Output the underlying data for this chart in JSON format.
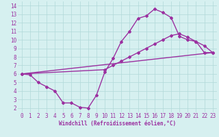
{
  "line1_x": [
    0,
    1,
    2,
    3,
    4,
    5,
    6,
    7,
    8,
    9,
    10,
    11,
    12,
    13,
    14,
    15,
    16,
    17,
    18,
    19,
    20,
    21,
    22,
    23
  ],
  "line1_y": [
    6.0,
    5.9,
    5.0,
    4.5,
    4.0,
    2.6,
    2.6,
    2.1,
    2.0,
    3.5,
    6.2,
    7.8,
    9.8,
    11.0,
    12.5,
    12.8,
    13.6,
    13.2,
    12.6,
    10.4,
    10.0,
    9.8,
    8.5,
    8.5
  ],
  "line2_x": [
    0,
    23
  ],
  "line2_y": [
    6.0,
    8.5
  ],
  "line3_x": [
    0,
    10,
    11,
    12,
    13,
    14,
    15,
    16,
    17,
    18,
    19,
    20,
    21,
    22,
    23
  ],
  "line3_y": [
    6.0,
    6.5,
    7.0,
    7.5,
    8.0,
    8.5,
    9.0,
    9.5,
    10.0,
    10.5,
    10.7,
    10.3,
    9.8,
    9.3,
    8.5
  ],
  "color": "#9b30a0",
  "bg_color": "#d6f0f0",
  "grid_color": "#b0d8d8",
  "xlabel": "Windchill (Refroidissement éolien,°C)",
  "xlim": [
    -0.5,
    23.5
  ],
  "ylim": [
    1.5,
    14.5
  ],
  "xticks": [
    0,
    1,
    2,
    3,
    4,
    5,
    6,
    7,
    8,
    9,
    10,
    11,
    12,
    13,
    14,
    15,
    16,
    17,
    18,
    19,
    20,
    21,
    22,
    23
  ],
  "yticks": [
    2,
    3,
    4,
    5,
    6,
    7,
    8,
    9,
    10,
    11,
    12,
    13,
    14
  ],
  "marker": "D",
  "markersize": 2.0,
  "linewidth": 1.0,
  "xlabel_fontsize": 5.5,
  "tick_fontsize": 5.5
}
